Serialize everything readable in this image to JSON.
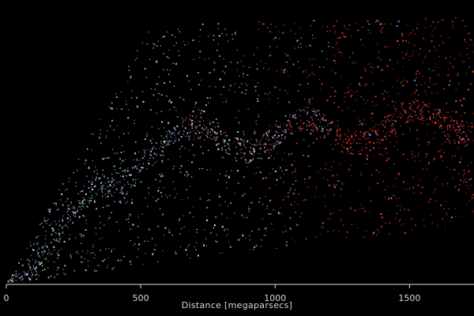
{
  "chart_data": {
    "type": "scatter",
    "title": "",
    "xlabel": "Distance [megaparsecs]",
    "ylabel": "",
    "xlim": [
      0,
      1740
    ],
    "xticks": [
      0,
      500,
      1000,
      1500
    ],
    "tick_labels": [
      "0",
      "500",
      "1000",
      "1500"
    ],
    "grid": false,
    "legend": "none",
    "description_of_marks": "dense wedge-shaped cloud of galaxy points, colors shift with distance",
    "series": [
      {
        "color": "#c8c8f0",
        "distance_range": [
          0,
          700
        ]
      },
      {
        "color": "#3ed23e",
        "distance_range": [
          150,
          650
        ]
      },
      {
        "color": "#f03030",
        "distance_range": [
          550,
          1740
        ]
      },
      {
        "color": "#6a8cff",
        "distance_range": [
          800,
          1740
        ]
      }
    ],
    "colors": {
      "background": "#000000",
      "axis": "#e0e0e0",
      "text": "#d8d8d8"
    }
  }
}
